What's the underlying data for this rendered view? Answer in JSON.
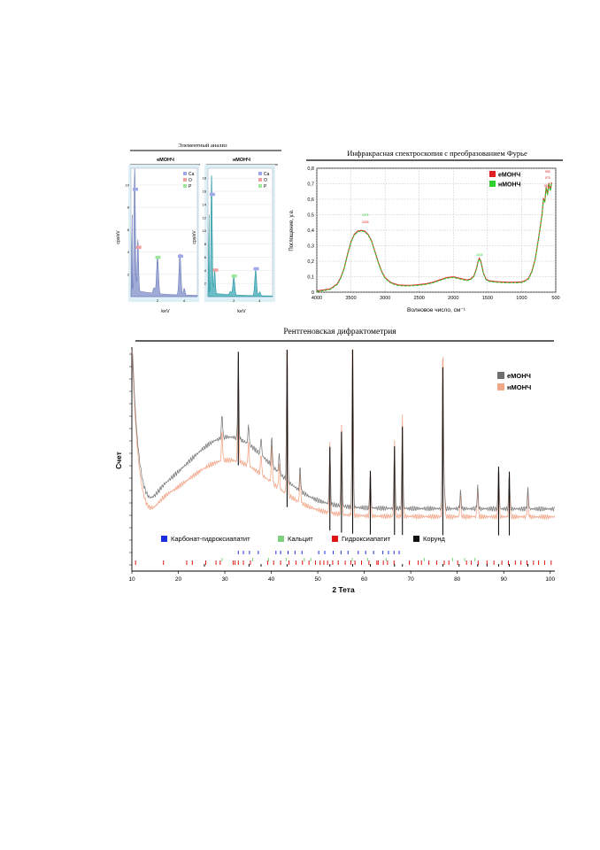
{
  "eds": {
    "title": "Элементный анализ",
    "legend": [
      "Ca",
      "O",
      "P"
    ],
    "colors": {
      "Ca": "#9fa8e8",
      "O": "#f0a0a0",
      "P": "#9be89b"
    },
    "panels": [
      {
        "name": "еМОНЧ",
        "ylabel": "cps/eV",
        "xlabel": "keV",
        "yticks": [
          2,
          4,
          6,
          8,
          10
        ],
        "xticks": [
          2,
          4
        ],
        "ymax": 11.5,
        "fill": "#7f8fc8",
        "line": "#5a6bb0",
        "peaks": [
          [
            0.28,
            11.0,
            0.05
          ],
          [
            0.52,
            4.6,
            0.05
          ],
          [
            1.74,
            0.5,
            0.07
          ],
          [
            2.0,
            3.3,
            0.07
          ],
          [
            3.69,
            3.7,
            0.07
          ],
          [
            4.01,
            0.6,
            0.06
          ]
        ],
        "markers": [
          {
            "el": "Ca",
            "x": 0.3,
            "y": 9.6
          },
          {
            "el": "O",
            "x": 0.55,
            "y": 4.4
          },
          {
            "el": "P",
            "x": 2.0,
            "y": 3.5
          },
          {
            "el": "Ca",
            "x": 3.7,
            "y": 3.6
          }
        ]
      },
      {
        "name": "нМОНЧ",
        "ylabel": "cps/eV",
        "xlabel": "keV",
        "yticks": [
          2,
          4,
          6,
          8,
          10,
          12,
          14,
          16,
          18
        ],
        "xticks": [
          2,
          4
        ],
        "ymax": 19.5,
        "fill": "#35a7b3",
        "line": "#1a8d9a",
        "peaks": [
          [
            0.28,
            18.0,
            0.05
          ],
          [
            0.52,
            3.5,
            0.05
          ],
          [
            1.74,
            0.5,
            0.07
          ],
          [
            2.0,
            2.8,
            0.07
          ],
          [
            3.69,
            3.9,
            0.07
          ],
          [
            4.01,
            0.6,
            0.06
          ]
        ],
        "markers": [
          {
            "el": "Ca",
            "x": 0.3,
            "y": 15.5
          },
          {
            "el": "O",
            "x": 0.55,
            "y": 4.0
          },
          {
            "el": "P",
            "x": 2.0,
            "y": 3.1
          },
          {
            "el": "Ca",
            "x": 3.7,
            "y": 4.2
          }
        ]
      }
    ]
  },
  "ftir": {
    "title": "Инфракрасная спектроскопия с преобразованием Фурье",
    "xlabel": "Волновое число, см⁻¹",
    "ylabel": "Поглощение, у.е.",
    "xticks": [
      4000,
      3500,
      3000,
      2500,
      2000,
      1500,
      1000,
      500
    ],
    "yticks": [
      0,
      0.1,
      0.2,
      0.3,
      0.4,
      0.5,
      0.6,
      0.7,
      0.8
    ],
    "ytick_labels": [
      "0",
      "0,1",
      "0,2",
      "0,3",
      "0,4",
      "0,5",
      "0,6",
      "0,7",
      "0,8"
    ],
    "legend": [
      "еМОНЧ",
      "нМОНЧ"
    ],
    "colors": [
      "#e02020",
      "#2fd02f"
    ],
    "curve_x": [
      4000,
      3900,
      3800,
      3700,
      3650,
      3600,
      3550,
      3500,
      3450,
      3400,
      3350,
      3300,
      3250,
      3200,
      3150,
      3100,
      3050,
      3000,
      2950,
      2900,
      2800,
      2700,
      2600,
      2500,
      2400,
      2300,
      2200,
      2100,
      2000,
      1900,
      1800,
      1750,
      1700,
      1660,
      1640,
      1620,
      1600,
      1580,
      1560,
      1520,
      1480,
      1400,
      1300,
      1200,
      1100,
      1000,
      950,
      900,
      850,
      800,
      750,
      700,
      680,
      660,
      640,
      620,
      600,
      580,
      560
    ],
    "curve_y": [
      0.005,
      0.01,
      0.018,
      0.05,
      0.09,
      0.15,
      0.24,
      0.32,
      0.37,
      0.39,
      0.395,
      0.39,
      0.37,
      0.33,
      0.26,
      0.19,
      0.13,
      0.09,
      0.07,
      0.055,
      0.042,
      0.04,
      0.041,
      0.045,
      0.05,
      0.06,
      0.075,
      0.09,
      0.095,
      0.085,
      0.075,
      0.08,
      0.1,
      0.15,
      0.19,
      0.215,
      0.2,
      0.16,
      0.12,
      0.08,
      0.07,
      0.065,
      0.062,
      0.06,
      0.06,
      0.062,
      0.07,
      0.085,
      0.13,
      0.21,
      0.35,
      0.5,
      0.58,
      0.6,
      0.66,
      0.64,
      0.69,
      0.66,
      0.7
    ],
    "xlim": [
      4000,
      500
    ],
    "ylim": [
      0,
      0.8
    ]
  },
  "xrd": {
    "title": "Рентгеновская дифрактометрия",
    "xlabel": "2 Тета",
    "ylabel": "Счет",
    "xticks": [
      10,
      20,
      30,
      40,
      50,
      60,
      70,
      80,
      90,
      100
    ],
    "xlim": [
      10,
      101
    ],
    "legend": [
      "еМОНЧ",
      "нМОНЧ"
    ],
    "colors": [
      "#707070",
      "#f2a78a"
    ],
    "phases": [
      "Карбонат-гидроксиапатит",
      "Кальцит",
      "Гидроксиапатит",
      "Корунд"
    ],
    "phase_colors": [
      "#1f2fe0",
      "#7fd07f",
      "#e01515",
      "#111111"
    ],
    "peaks": [
      [
        29.4,
        1.0
      ],
      [
        32.9,
        3.5
      ],
      [
        35.1,
        0.8
      ],
      [
        37.8,
        0.7
      ],
      [
        40.1,
        1.2
      ],
      [
        41.7,
        0.8
      ],
      [
        43.4,
        5.8
      ],
      [
        46.2,
        1.0
      ],
      [
        52.6,
        2.3
      ],
      [
        55.1,
        3.0
      ],
      [
        57.5,
        7.5
      ],
      [
        61.3,
        1.5
      ],
      [
        66.5,
        2.5
      ],
      [
        68.2,
        3.3
      ],
      [
        76.9,
        5.7
      ],
      [
        77.2,
        1.0
      ],
      [
        80.7,
        0.7
      ],
      [
        84.4,
        0.9
      ],
      [
        88.9,
        1.7
      ],
      [
        91.2,
        1.5
      ],
      [
        95.2,
        0.8
      ]
    ],
    "ticks_carbonate": [
      32.9,
      34.0,
      35.3,
      37.2,
      41.0,
      42.0,
      43.6,
      45.1,
      46.6,
      50.2,
      51.5,
      53.3,
      55.0,
      56.5,
      58.7,
      60.3,
      62.0,
      64.0,
      65.2,
      66.4,
      67.5
    ],
    "ticks_calcite": [
      29.4,
      36.0,
      39.4,
      43.2,
      47.1,
      48.5,
      57.4,
      60.7,
      64.7,
      72.9,
      79.0,
      81.6,
      83.8
    ],
    "ticks_hap": [
      10.8,
      16.8,
      21.8,
      23.0,
      25.9,
      28.1,
      29.0,
      31.8,
      32.2,
      32.9,
      34.0,
      35.5,
      39.2,
      40.5,
      42.0,
      43.8,
      45.3,
      46.7,
      48.1,
      49.5,
      50.5,
      51.3,
      52.1,
      53.2,
      54.4,
      55.9,
      57.1,
      58.0,
      59.4,
      61.0,
      62.7,
      63.0,
      64.1,
      65.0,
      66.4,
      69.7,
      71.6,
      72.3,
      73.9,
      75.6,
      77.2,
      78.2,
      80.1,
      82.0,
      83.0,
      84.5,
      86.4,
      87.9,
      89.6,
      91.0,
      92.5,
      93.7,
      95.0,
      96.4,
      97.5,
      98.8,
      100.2
    ],
    "ticks_corundum": [
      25.6,
      35.2,
      37.8,
      43.4,
      52.6,
      57.5,
      61.3,
      66.5,
      68.2,
      76.9,
      80.4,
      84.4,
      86.4,
      88.9,
      91.2,
      95.2
    ]
  }
}
